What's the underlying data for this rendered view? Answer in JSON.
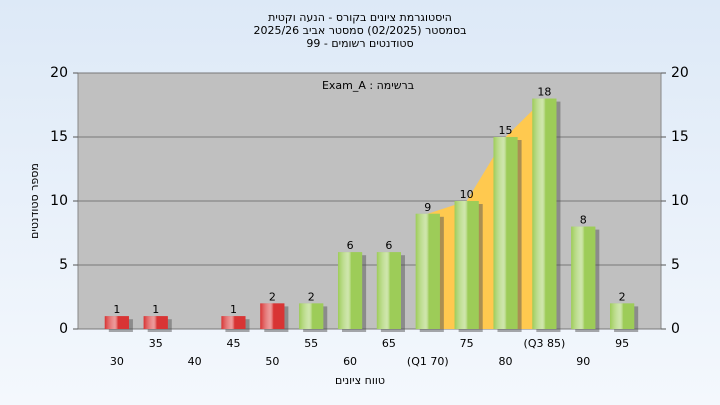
{
  "chart_data": {
    "type": "bar",
    "title": [
      "היסטוגרמת ציונים בקורס - הנעה וקטית",
      "בסמסטר  (02/2025)  סמסטר אביב 2025/26",
      "סטודנטים רשומים - 99"
    ],
    "annotation": "Exam_A : ברשימה",
    "x_label": "טווח ציונים",
    "y_label": "מספר סטודנטים",
    "categories": [
      "30",
      "35",
      "40",
      "45",
      "50",
      "55",
      "60",
      "65",
      "(Q1 70)",
      "75",
      "80",
      "(Q3 85)",
      "90",
      "95"
    ],
    "values": [
      1,
      1,
      null,
      1,
      2,
      2,
      6,
      6,
      9,
      10,
      15,
      18,
      8,
      2
    ],
    "colors": [
      "#d83434",
      "#d83434",
      "#d83434",
      "#d83434",
      "#d83434",
      "#9dcc58",
      "#9dcc58",
      "#9dcc58",
      "#9dcc58",
      "#9dcc58",
      "#9dcc58",
      "#9dcc58",
      "#9dcc58",
      "#9dcc58"
    ],
    "area": {
      "color": "#ffc94f",
      "values": [
        null,
        null,
        null,
        null,
        null,
        null,
        null,
        null,
        9,
        10,
        15,
        18,
        null,
        null
      ]
    },
    "ylim": [
      0,
      20
    ],
    "yticks": [
      0,
      5,
      10,
      15,
      20
    ],
    "y2lim": [
      0,
      20
    ],
    "y2ticks": [
      0,
      5,
      10,
      15,
      20
    ],
    "grid": true
  }
}
